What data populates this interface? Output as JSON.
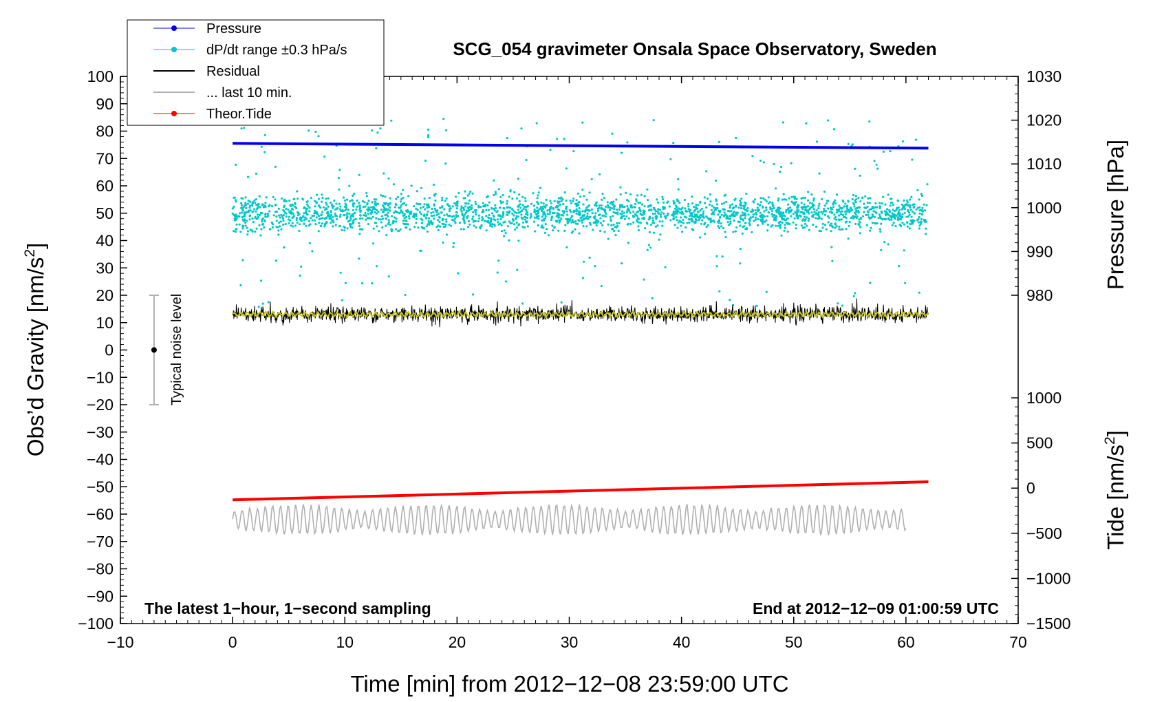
{
  "chart_data": {
    "type": "line",
    "title": "SCG_054 gravimeter Onsala Space Observatory, Sweden",
    "xlabel": "Time [min] from 2012−12−08 23:59:00 UTC",
    "ylabel_left": "Obs’d Gravity [nm/s²]",
    "ylabel_pressure": "Pressure [hPa]",
    "ylabel_tide": "Tide [nm/s²]",
    "note_left": "The latest 1−hour, 1−second sampling",
    "note_right": "End at 2012−12−09 01:00:59 UTC",
    "noise_label": "Typical noise level",
    "xlim": [
      -10,
      70
    ],
    "ylim": [
      -100,
      100
    ],
    "pressure_lim": [
      980,
      1030
    ],
    "tide_lim": [
      -1500,
      1000
    ],
    "x_ticks": [
      "−10",
      "0",
      "10",
      "20",
      "30",
      "40",
      "50",
      "60",
      "70"
    ],
    "x_tick_values": [
      -10,
      0,
      10,
      20,
      30,
      40,
      50,
      60,
      70
    ],
    "y_ticks": [
      "100",
      "90",
      "80",
      "70",
      "60",
      "50",
      "40",
      "30",
      "20",
      "10",
      "0",
      "−10",
      "−20",
      "−30",
      "−40",
      "−50",
      "−60",
      "−70",
      "−80",
      "−90",
      "−100"
    ],
    "y_tick_values": [
      100,
      90,
      80,
      70,
      60,
      50,
      40,
      30,
      20,
      10,
      0,
      -10,
      -20,
      -30,
      -40,
      -50,
      -60,
      -70,
      -80,
      -90,
      -100
    ],
    "pressure_ticks": [
      "1030",
      "1020",
      "1010",
      "1000",
      "990",
      "980"
    ],
    "pressure_tick_values": [
      1030,
      1020,
      1010,
      1000,
      990,
      980
    ],
    "tide_ticks": [
      "1000",
      "500",
      "0",
      "−500",
      "−1000",
      "−1500"
    ],
    "tide_tick_values": [
      1000,
      500,
      0,
      -500,
      -1000,
      -1500
    ],
    "legend": {
      "position": "top-left",
      "items": [
        {
          "label": "Pressure",
          "color": "#0000ee",
          "marker": "dot"
        },
        {
          "label": "dP/dt range ±0.3 hPa/s",
          "color": "#00c8c8",
          "marker": "dot"
        },
        {
          "label": "Residual",
          "color": "#000000",
          "marker": "line"
        },
        {
          "label": "... last 10 min.",
          "color": "#b0b0b0",
          "marker": "line"
        },
        {
          "label": "Theor.Tide",
          "color": "#ff0000",
          "marker": "dot"
        }
      ]
    },
    "series": [
      {
        "name": "Pressure",
        "axis": "pressure",
        "color": "#0000ee",
        "x": [
          0,
          62
        ],
        "y": [
          1014.7,
          1013.6
        ]
      },
      {
        "name": "dP/dt range ±0.3 hPa/s",
        "axis": "left",
        "color": "#00c8c8",
        "x": [
          0,
          62
        ],
        "center": 50,
        "range": 35
      },
      {
        "name": "Residual",
        "axis": "left",
        "color": "#000000",
        "x": [
          0,
          62
        ],
        "center": 13,
        "range": 9
      },
      {
        "name": "Residual smoothed",
        "axis": "left",
        "color": "#c8c800",
        "x": [
          0,
          62
        ],
        "center": 13,
        "range": 1.5
      },
      {
        "name": "... last 10 min.",
        "axis": "left",
        "color": "#b0b0b0",
        "x": [
          0,
          60
        ],
        "center": -62,
        "range": 7
      },
      {
        "name": "Theor.Tide",
        "axis": "tide",
        "color": "#ff0000",
        "x": [
          0,
          62
        ],
        "y": [
          -130,
          70
        ]
      }
    ],
    "noise_bar": {
      "x": -7,
      "center": 0,
      "low": -20,
      "high": 20
    },
    "grid": false
  }
}
